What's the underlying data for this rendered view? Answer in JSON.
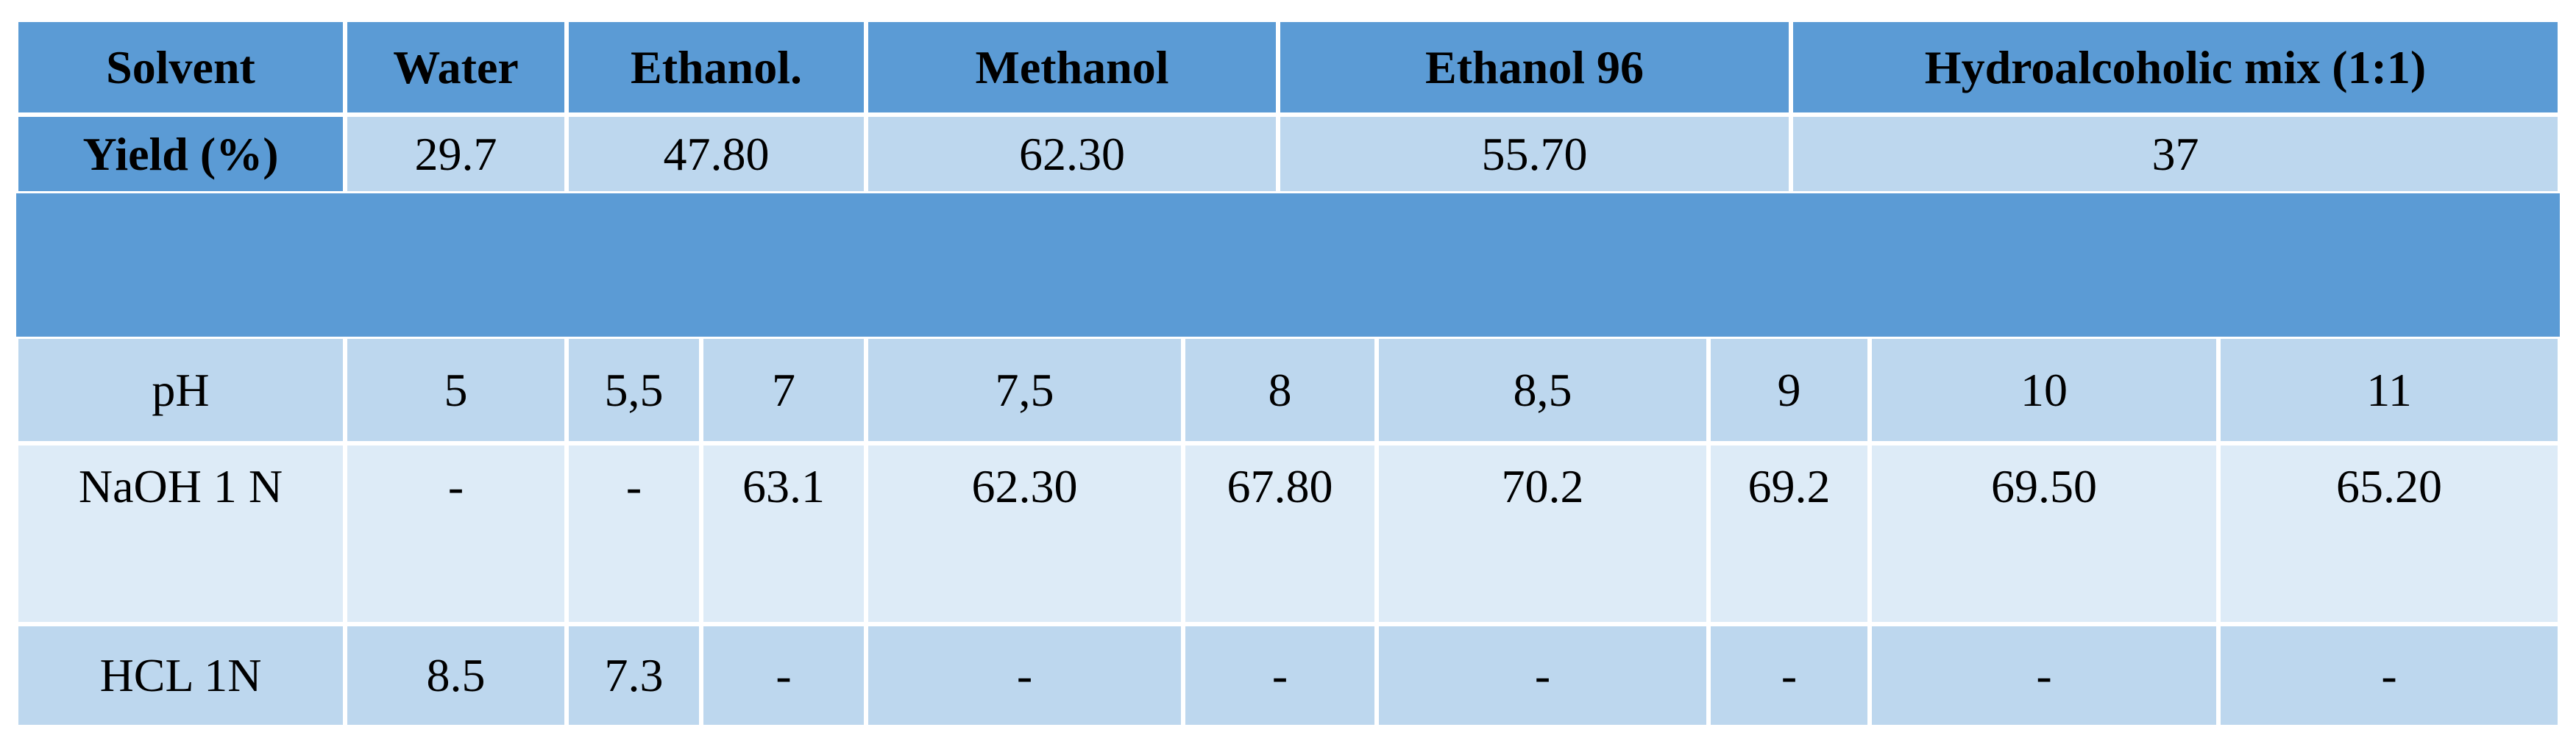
{
  "table": {
    "header": [
      "Solvent",
      "Water",
      "Ethanol.",
      "Methanol",
      "Ethanol 96",
      "Hydroalcoholic mix (1:1)"
    ],
    "yield": {
      "label": "Yield (%)",
      "values": [
        "29.7",
        "47.80",
        "62.30",
        "55.70",
        "37"
      ]
    },
    "rows": [
      {
        "label": "pH",
        "values": [
          "5",
          "5,5",
          "7",
          "7,5",
          "8",
          "8,5",
          "9",
          "10",
          "11"
        ]
      },
      {
        "label": "NaOH 1 N",
        "values": [
          "-",
          "-",
          "63.1",
          "62.30",
          "67.80",
          "70.2",
          "69.2",
          "69.50",
          "65.20"
        ]
      },
      {
        "label": "HCL 1N",
        "values": [
          "8.5",
          "7.3",
          "-",
          "-",
          "-",
          "-",
          "-",
          "-",
          "-"
        ]
      }
    ]
  }
}
